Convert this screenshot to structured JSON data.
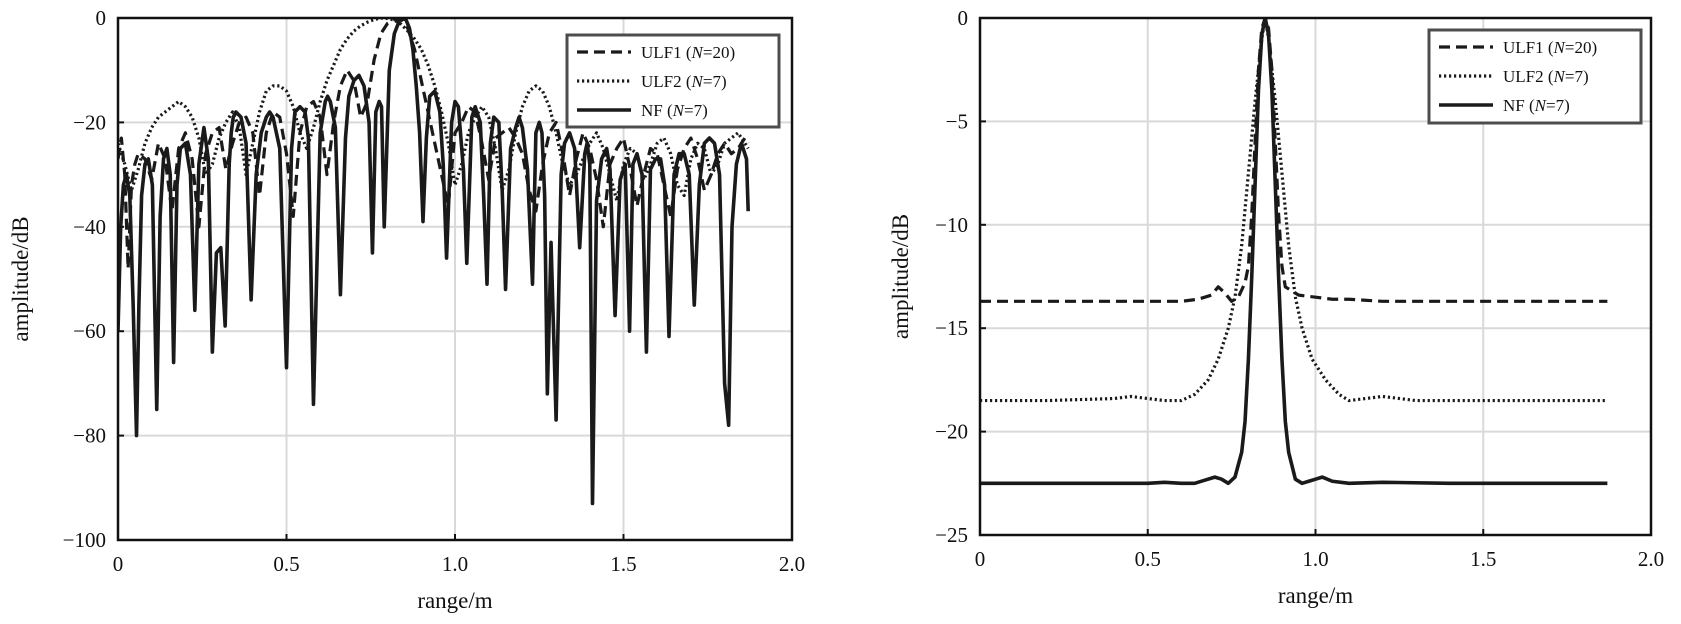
{
  "chart_data": [
    {
      "type": "line",
      "xlabel": "range/m",
      "ylabel": "amplitude/dB",
      "xlim": [
        0,
        2.0
      ],
      "ylim": [
        -100,
        0
      ],
      "xticks": [
        0,
        0.5,
        1.0,
        1.5,
        2.0
      ],
      "xtick_labels": [
        "0",
        "0.5",
        "1.0",
        "1.5",
        "2.0"
      ],
      "yticks": [
        0,
        -20,
        -40,
        -60,
        -80,
        -100
      ],
      "ytick_labels": [
        "0",
        "−20",
        "−40",
        "−60",
        "−80",
        "−100"
      ],
      "grid": true,
      "legend": "top-right",
      "series": [
        {
          "name": "ULF1 (N=20)",
          "style": "dashed",
          "x": [
            0.0,
            0.01,
            0.02,
            0.03,
            0.04,
            0.05,
            0.06,
            0.08,
            0.1,
            0.12,
            0.14,
            0.16,
            0.18,
            0.2,
            0.22,
            0.24,
            0.26,
            0.28,
            0.3,
            0.32,
            0.34,
            0.36,
            0.38,
            0.4,
            0.42,
            0.44,
            0.46,
            0.48,
            0.5,
            0.52,
            0.54,
            0.56,
            0.58,
            0.6,
            0.62,
            0.64,
            0.66,
            0.68,
            0.7,
            0.72,
            0.74,
            0.76,
            0.78,
            0.8,
            0.82,
            0.84,
            0.86,
            0.88,
            0.9,
            0.92,
            0.94,
            0.96,
            0.98,
            1.0,
            1.02,
            1.04,
            1.06,
            1.08,
            1.1,
            1.12,
            1.14,
            1.16,
            1.18,
            1.2,
            1.22,
            1.24,
            1.26,
            1.28,
            1.3,
            1.32,
            1.34,
            1.36,
            1.38,
            1.4,
            1.42,
            1.44,
            1.46,
            1.48,
            1.5,
            1.52,
            1.54,
            1.56,
            1.58,
            1.6,
            1.62,
            1.64,
            1.66,
            1.68,
            1.7,
            1.72,
            1.74,
            1.76,
            1.78,
            1.8,
            1.82,
            1.84,
            1.86,
            1.87
          ],
          "y": [
            -27,
            -23,
            -30,
            -48,
            -32,
            -28,
            -26,
            -27,
            -31,
            -24,
            -27,
            -37,
            -25,
            -22,
            -27,
            -40,
            -26,
            -22,
            -21,
            -29,
            -24,
            -20,
            -19,
            -22,
            -34,
            -22,
            -18,
            -19,
            -26,
            -38,
            -22,
            -17,
            -16,
            -19,
            -30,
            -20,
            -13,
            -10,
            -12,
            -19,
            -16,
            -8,
            -3,
            -1,
            -0.3,
            -0.2,
            -2,
            -6,
            -12,
            -18,
            -24,
            -30,
            -36,
            -22,
            -20,
            -17,
            -18,
            -24,
            -31,
            -23,
            -22,
            -21,
            -23,
            -26,
            -33,
            -37,
            -28,
            -22,
            -20,
            -26,
            -34,
            -27,
            -22,
            -25,
            -31,
            -40,
            -28,
            -25,
            -23,
            -29,
            -36,
            -30,
            -25,
            -26,
            -32,
            -38,
            -29,
            -25,
            -23,
            -27,
            -33,
            -30,
            -26,
            -24,
            -26,
            -25,
            -23,
            -24
          ]
        },
        {
          "name": "ULF2 (N=7)",
          "style": "dotted",
          "x": [
            0.0,
            0.02,
            0.04,
            0.06,
            0.08,
            0.1,
            0.12,
            0.14,
            0.16,
            0.18,
            0.2,
            0.22,
            0.24,
            0.26,
            0.28,
            0.3,
            0.32,
            0.34,
            0.36,
            0.38,
            0.4,
            0.42,
            0.44,
            0.46,
            0.48,
            0.5,
            0.52,
            0.54,
            0.56,
            0.58,
            0.6,
            0.62,
            0.64,
            0.66,
            0.68,
            0.7,
            0.72,
            0.74,
            0.76,
            0.78,
            0.8,
            0.82,
            0.84,
            0.86,
            0.88,
            0.9,
            0.92,
            0.94,
            0.96,
            0.98,
            1.0,
            1.02,
            1.04,
            1.06,
            1.08,
            1.1,
            1.12,
            1.14,
            1.16,
            1.18,
            1.2,
            1.22,
            1.24,
            1.26,
            1.28,
            1.3,
            1.32,
            1.34,
            1.36,
            1.38,
            1.4,
            1.42,
            1.44,
            1.46,
            1.48,
            1.5,
            1.52,
            1.54,
            1.56,
            1.58,
            1.6,
            1.62,
            1.64,
            1.66,
            1.68,
            1.7,
            1.72,
            1.74,
            1.76,
            1.78,
            1.8,
            1.82,
            1.84,
            1.86,
            1.87
          ],
          "y": [
            -24,
            -28,
            -33,
            -29,
            -24,
            -21,
            -19,
            -18,
            -17,
            -16,
            -17,
            -19,
            -23,
            -30,
            -28,
            -23,
            -20,
            -18,
            -21,
            -30,
            -24,
            -18,
            -14,
            -13,
            -13,
            -14,
            -17,
            -22,
            -25,
            -21,
            -16,
            -12,
            -9,
            -6,
            -4,
            -2.5,
            -1.5,
            -0.8,
            -0.3,
            0,
            -0.1,
            -0.4,
            -1.2,
            -2.5,
            -4,
            -6,
            -9,
            -13,
            -18,
            -24,
            -32,
            -28,
            -22,
            -19,
            -17,
            -19,
            -25,
            -33,
            -29,
            -22,
            -17,
            -14,
            -13,
            -14,
            -17,
            -22,
            -28,
            -32,
            -30,
            -27,
            -24,
            -22,
            -25,
            -30,
            -35,
            -28,
            -25,
            -26,
            -31,
            -28,
            -24,
            -23,
            -26,
            -32,
            -34,
            -27,
            -24,
            -25,
            -30,
            -28,
            -24,
            -23,
            -22,
            -24,
            -25
          ]
        },
        {
          "name": "NF (N=7)",
          "style": "solid",
          "x": [
            0.0,
            0.008,
            0.016,
            0.025,
            0.035,
            0.045,
            0.055,
            0.062,
            0.07,
            0.08,
            0.09,
            0.102,
            0.115,
            0.125,
            0.135,
            0.145,
            0.155,
            0.165,
            0.175,
            0.185,
            0.2,
            0.215,
            0.228,
            0.24,
            0.255,
            0.268,
            0.28,
            0.292,
            0.305,
            0.318,
            0.33,
            0.336,
            0.342,
            0.35,
            0.365,
            0.38,
            0.395,
            0.41,
            0.425,
            0.44,
            0.45,
            0.46,
            0.48,
            0.5,
            0.515,
            0.525,
            0.54,
            0.555,
            0.565,
            0.58,
            0.6,
            0.615,
            0.622,
            0.63,
            0.645,
            0.66,
            0.675,
            0.685,
            0.7,
            0.715,
            0.73,
            0.745,
            0.755,
            0.765,
            0.775,
            0.782,
            0.79,
            0.805,
            0.82,
            0.835,
            0.845,
            0.855,
            0.865,
            0.875,
            0.885,
            0.895,
            0.905,
            0.915,
            0.925,
            0.94,
            0.955,
            0.965,
            0.975,
            0.99,
            1.0,
            1.01,
            1.025,
            1.035,
            1.05,
            1.06,
            1.075,
            1.085,
            1.095,
            1.105,
            1.115,
            1.13,
            1.14,
            1.15,
            1.165,
            1.18,
            1.19,
            1.2,
            1.215,
            1.23,
            1.24,
            1.25,
            1.258,
            1.266,
            1.274,
            1.285,
            1.3,
            1.315,
            1.325,
            1.34,
            1.355,
            1.37,
            1.385,
            1.392,
            1.4,
            1.408,
            1.42,
            1.435,
            1.45,
            1.46,
            1.475,
            1.49,
            1.505,
            1.518,
            1.528,
            1.54,
            1.555,
            1.568,
            1.58,
            1.595,
            1.61,
            1.622,
            1.635,
            1.65,
            1.665,
            1.68,
            1.695,
            1.71,
            1.725,
            1.74,
            1.755,
            1.77,
            1.785,
            1.8,
            1.812,
            1.822,
            1.835,
            1.85,
            1.865,
            1.87
          ],
          "y": [
            -60,
            -40,
            -32,
            -30,
            -34,
            -55,
            -80,
            -55,
            -34,
            -28,
            -27,
            -32,
            -75,
            -38,
            -27,
            -25,
            -30,
            -66,
            -32,
            -25,
            -24,
            -30,
            -56,
            -28,
            -21,
            -27,
            -64,
            -45,
            -44,
            -59,
            -28,
            -22,
            -19,
            -18,
            -19,
            -24,
            -54,
            -30,
            -22,
            -19,
            -18,
            -19,
            -25,
            -67,
            -25,
            -18,
            -17,
            -18,
            -23,
            -74,
            -22,
            -16,
            -15,
            -16,
            -21,
            -53,
            -23,
            -15,
            -12,
            -11,
            -13,
            -20,
            -45,
            -18,
            -16,
            -17,
            -40,
            -10,
            -3,
            -0.5,
            0,
            -0.4,
            -2,
            -6,
            -13,
            -22,
            -39,
            -23,
            -15,
            -14,
            -18,
            -28,
            -46,
            -20,
            -16,
            -17,
            -29,
            -47,
            -19,
            -17,
            -20,
            -34,
            -51,
            -24,
            -19,
            -20,
            -33,
            -52,
            -25,
            -21,
            -19,
            -21,
            -29,
            -51,
            -22,
            -20,
            -22,
            -34,
            -72,
            -43,
            -77,
            -30,
            -24,
            -22,
            -25,
            -44,
            -26,
            -24,
            -28,
            -93,
            -35,
            -27,
            -25,
            -29,
            -57,
            -31,
            -28,
            -60,
            -28,
            -26,
            -30,
            -64,
            -29,
            -27,
            -27,
            -32,
            -61,
            -30,
            -26,
            -26,
            -30,
            -55,
            -32,
            -24,
            -23,
            -24,
            -30,
            -70,
            -78,
            -40,
            -28,
            -24,
            -27,
            -37
          ]
        }
      ]
    },
    {
      "type": "line",
      "xlabel": "range/m",
      "ylabel": "amplitude/dB",
      "xlim": [
        0,
        2.0
      ],
      "ylim": [
        -25,
        0
      ],
      "xticks": [
        0,
        0.5,
        1.0,
        1.5,
        2.0
      ],
      "xtick_labels": [
        "0",
        "0.5",
        "1.0",
        "1.5",
        "2.0"
      ],
      "yticks": [
        0,
        -5,
        -10,
        -15,
        -20,
        -25
      ],
      "ytick_labels": [
        "0",
        "−5",
        "−10",
        "−15",
        "−20",
        "−25"
      ],
      "grid": true,
      "legend": "top-right",
      "series": [
        {
          "name": "ULF1 (N=20)",
          "style": "dashed",
          "x": [
            0.0,
            0.1,
            0.2,
            0.3,
            0.4,
            0.5,
            0.6,
            0.65,
            0.69,
            0.71,
            0.73,
            0.75,
            0.77,
            0.79,
            0.8,
            0.81,
            0.82,
            0.83,
            0.84,
            0.85,
            0.86,
            0.87,
            0.88,
            0.89,
            0.9,
            0.91,
            0.93,
            0.95,
            1.0,
            1.05,
            1.1,
            1.2,
            1.4,
            1.6,
            1.8,
            1.87
          ],
          "y": [
            -13.7,
            -13.7,
            -13.7,
            -13.7,
            -13.7,
            -13.7,
            -13.7,
            -13.6,
            -13.4,
            -13.0,
            -13.3,
            -13.7,
            -13.5,
            -12.8,
            -12.0,
            -9.5,
            -6.0,
            -2.5,
            -0.5,
            0,
            -0.5,
            -2.5,
            -6.0,
            -9.5,
            -12.0,
            -13.0,
            -13.2,
            -13.4,
            -13.5,
            -13.6,
            -13.6,
            -13.7,
            -13.7,
            -13.7,
            -13.7,
            -13.7
          ]
        },
        {
          "name": "ULF2 (N=7)",
          "style": "dotted",
          "x": [
            0.0,
            0.1,
            0.2,
            0.3,
            0.4,
            0.45,
            0.5,
            0.55,
            0.6,
            0.64,
            0.68,
            0.71,
            0.74,
            0.76,
            0.78,
            0.8,
            0.82,
            0.84,
            0.85,
            0.86,
            0.88,
            0.9,
            0.92,
            0.94,
            0.96,
            0.99,
            1.03,
            1.07,
            1.1,
            1.15,
            1.2,
            1.25,
            1.3,
            1.4,
            1.6,
            1.8,
            1.87
          ],
          "y": [
            -18.5,
            -18.5,
            -18.5,
            -18.45,
            -18.4,
            -18.3,
            -18.4,
            -18.5,
            -18.5,
            -18.2,
            -17.5,
            -16.5,
            -15.0,
            -13.5,
            -11.0,
            -7.5,
            -4.0,
            -1.0,
            0,
            -1.0,
            -4.0,
            -7.5,
            -11.0,
            -13.5,
            -15.0,
            -16.5,
            -17.5,
            -18.2,
            -18.5,
            -18.4,
            -18.3,
            -18.4,
            -18.5,
            -18.5,
            -18.5,
            -18.5,
            -18.5
          ]
        },
        {
          "name": "NF (N=7)",
          "style": "solid",
          "x": [
            0.0,
            0.1,
            0.2,
            0.3,
            0.4,
            0.5,
            0.55,
            0.6,
            0.64,
            0.67,
            0.7,
            0.72,
            0.74,
            0.76,
            0.78,
            0.79,
            0.8,
            0.81,
            0.82,
            0.83,
            0.84,
            0.85,
            0.86,
            0.87,
            0.88,
            0.89,
            0.9,
            0.91,
            0.92,
            0.94,
            0.96,
            0.98,
            1.0,
            1.02,
            1.05,
            1.1,
            1.2,
            1.4,
            1.6,
            1.8,
            1.87
          ],
          "y": [
            -22.5,
            -22.5,
            -22.5,
            -22.5,
            -22.5,
            -22.5,
            -22.45,
            -22.5,
            -22.5,
            -22.35,
            -22.2,
            -22.3,
            -22.5,
            -22.2,
            -21.0,
            -19.5,
            -16.5,
            -12.5,
            -8.0,
            -3.5,
            -0.8,
            0,
            -0.8,
            -3.5,
            -8.0,
            -12.5,
            -16.5,
            -19.5,
            -21.0,
            -22.3,
            -22.5,
            -22.4,
            -22.3,
            -22.2,
            -22.4,
            -22.5,
            -22.45,
            -22.5,
            -22.5,
            -22.5,
            -22.5
          ]
        }
      ]
    }
  ]
}
